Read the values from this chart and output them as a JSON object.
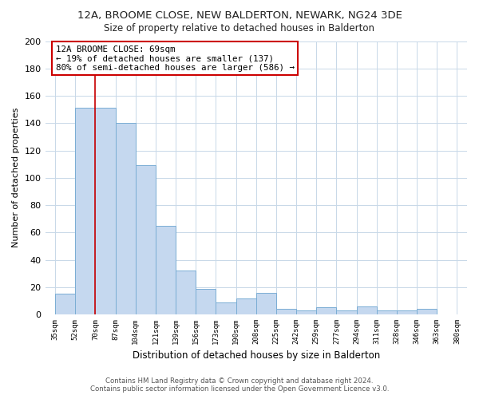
{
  "title": "12A, BROOME CLOSE, NEW BALDERTON, NEWARK, NG24 3DE",
  "subtitle": "Size of property relative to detached houses in Balderton",
  "xlabel": "Distribution of detached houses by size in Balderton",
  "ylabel": "Number of detached properties",
  "bar_labels": [
    "35sqm",
    "52sqm",
    "70sqm",
    "87sqm",
    "104sqm",
    "121sqm",
    "139sqm",
    "156sqm",
    "173sqm",
    "190sqm",
    "208sqm",
    "225sqm",
    "242sqm",
    "259sqm",
    "277sqm",
    "294sqm",
    "311sqm",
    "328sqm",
    "346sqm",
    "363sqm",
    "380sqm"
  ],
  "bar_values": [
    15,
    151,
    151,
    140,
    109,
    65,
    32,
    19,
    9,
    12,
    16,
    4,
    3,
    5,
    3,
    6,
    3,
    3,
    4,
    0,
    0
  ],
  "bar_color": "#c5d8ef",
  "bar_edge_color": "#7aadd4",
  "vline_color": "#cc0000",
  "vline_x_index": 2,
  "ylim": [
    0,
    200
  ],
  "yticks": [
    0,
    20,
    40,
    60,
    80,
    100,
    120,
    140,
    160,
    180,
    200
  ],
  "annotation_title": "12A BROOME CLOSE: 69sqm",
  "annotation_line1": "← 19% of detached houses are smaller (137)",
  "annotation_line2": "80% of semi-detached houses are larger (586) →",
  "annotation_box_color": "#ffffff",
  "annotation_box_edge": "#cc0000",
  "footer1": "Contains HM Land Registry data © Crown copyright and database right 2024.",
  "footer2": "Contains public sector information licensed under the Open Government Licence v3.0.",
  "background_color": "#ffffff",
  "grid_color": "#c8d8e8"
}
